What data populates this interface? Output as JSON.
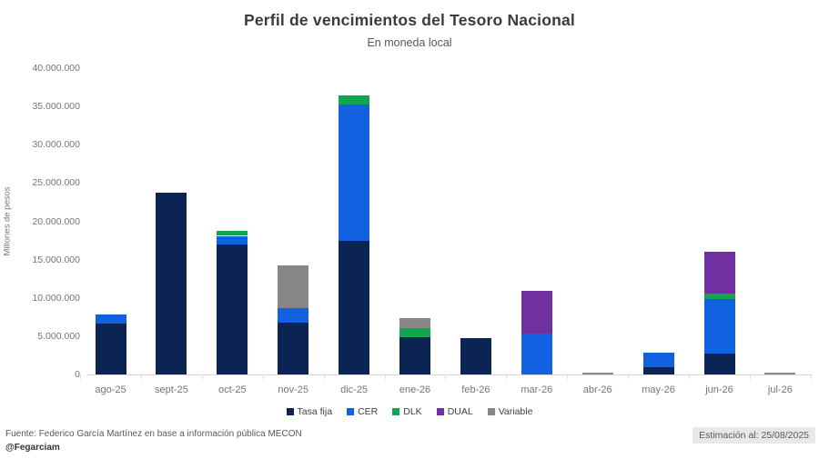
{
  "header": {
    "title": "Perfil de vencimientos del Tesoro Nacional",
    "subtitle": "En moneda local"
  },
  "y_axis": {
    "title": "Millones de pesos",
    "ticks": [
      "0",
      "5.000.000",
      "10.000.000",
      "15.000.000",
      "20.000.000",
      "25.000.000",
      "30.000.000",
      "35.000.000",
      "40.000.000"
    ]
  },
  "footer": {
    "source": "Fuente: Federico García Martínez en base a información pública MECON",
    "handle": "@Fegarciam",
    "estimate": "Estimación al: 25/08/2025"
  },
  "chart_data": {
    "type": "bar",
    "stacked": true,
    "title": "Perfil de vencimientos del Tesoro Nacional",
    "subtitle": "En moneda local",
    "xlabel": "",
    "ylabel": "Millones de pesos",
    "ylim": [
      0,
      40000000
    ],
    "ytick_interval": 5000000,
    "grid": false,
    "legend_position": "bottom",
    "categories": [
      "ago-25",
      "sept-25",
      "oct-25",
      "nov-25",
      "dic-25",
      "ene-26",
      "feb-26",
      "mar-26",
      "abr-26",
      "may-26",
      "jun-26",
      "jul-26"
    ],
    "series": [
      {
        "name": "Tasa fija",
        "color": "#0c2454",
        "values": [
          6600000,
          23700000,
          17000000,
          6800000,
          17500000,
          4900000,
          4800000,
          0,
          0,
          1000000,
          2700000,
          0
        ]
      },
      {
        "name": "CER",
        "color": "#1161e0",
        "values": [
          1200000,
          0,
          1100000,
          1900000,
          17800000,
          0,
          0,
          5300000,
          0,
          1800000,
          7100000,
          0
        ]
      },
      {
        "name": "DLK",
        "color": "#12a550",
        "values": [
          0,
          0,
          600000,
          0,
          1100000,
          1100000,
          0,
          0,
          0,
          0,
          800000,
          0
        ]
      },
      {
        "name": "DUAL",
        "color": "#7030a0",
        "values": [
          0,
          0,
          0,
          0,
          0,
          0,
          0,
          5600000,
          0,
          0,
          5400000,
          0
        ]
      },
      {
        "name": "Variable",
        "color": "#878787",
        "values": [
          0,
          0,
          0,
          5600000,
          0,
          1300000,
          0,
          0,
          200000,
          0,
          0,
          200000
        ]
      }
    ]
  }
}
